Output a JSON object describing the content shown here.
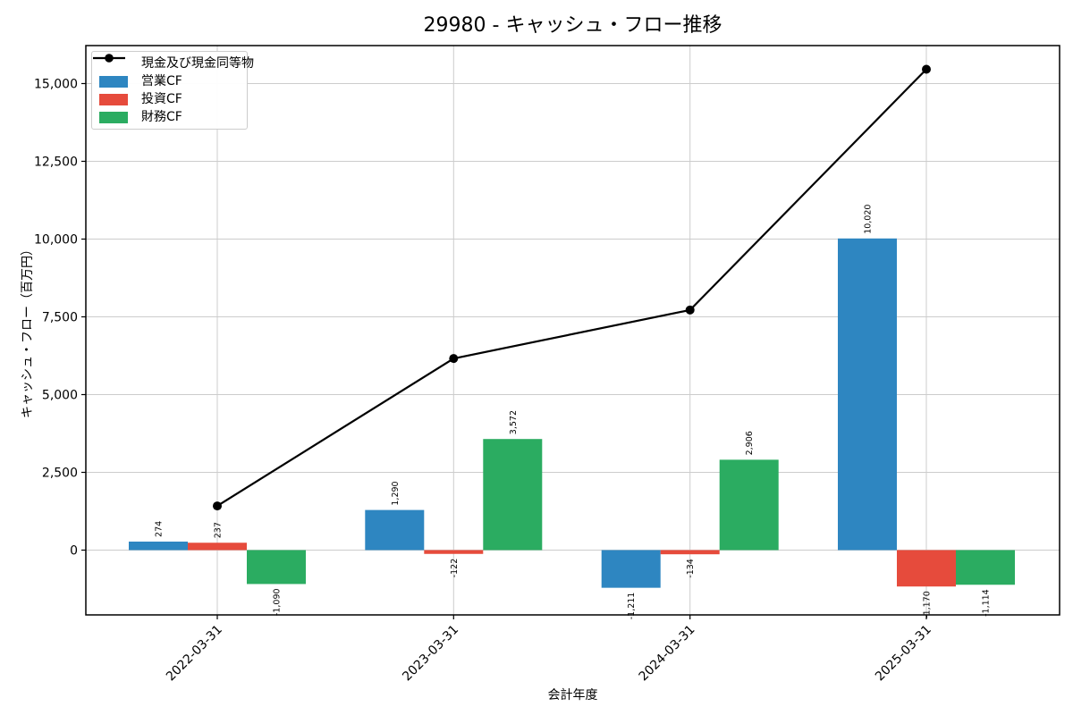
{
  "title": "29980 - キャッシュ・フロー推移",
  "chart_data": {
    "type": "bar",
    "title": "29980 - キャッシュ・フロー推移",
    "xlabel": "会計年度",
    "ylabel": "キャッシュ・フロー（百万円）",
    "categories": [
      "2022-03-31",
      "2023-03-31",
      "2024-03-31",
      "2025-03-31"
    ],
    "series": [
      {
        "name": "営業CF",
        "color": "#2e86c1",
        "values": [
          274,
          1290,
          -1211,
          10020
        ]
      },
      {
        "name": "投資CF",
        "color": "#e64b3c",
        "values": [
          237,
          -122,
          -134,
          -1170
        ]
      },
      {
        "name": "財務CF",
        "color": "#2bac61",
        "values": [
          -1090,
          3572,
          2906,
          -1114
        ]
      }
    ],
    "line": {
      "name": "現金及び現金同等物",
      "color": "#000000",
      "values_estimated": [
        1420,
        6160,
        7720,
        15460
      ]
    },
    "bar_labels": {
      "営業CF": [
        "274",
        "1,290",
        "-1,211",
        "10,020"
      ],
      "投資CF": [
        "237",
        "-122",
        "-134",
        "-1,170"
      ],
      "財務CF": [
        "-1,090",
        "3,572",
        "2,906",
        "-1,114"
      ]
    },
    "yticks": [
      0,
      2500,
      5000,
      7500,
      10000,
      12500,
      15000
    ],
    "ytick_labels": [
      "0",
      "2,500",
      "5,000",
      "7,500",
      "10,000",
      "12,500",
      "15,000"
    ],
    "ylim": [
      -2083,
      16221
    ],
    "grid": true,
    "grid_color": "#cccccc",
    "legend_position": "upper left",
    "x_tick_rotation_deg": 45,
    "bar_label_rotation_deg": 90
  }
}
